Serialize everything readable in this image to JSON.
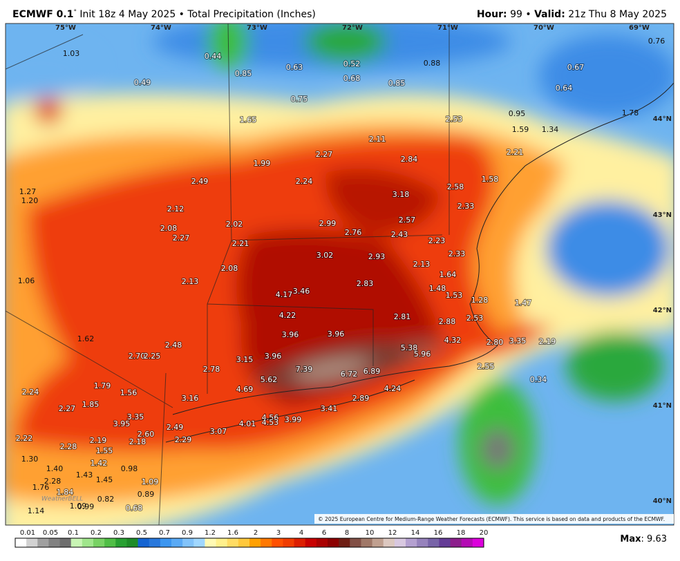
{
  "header": {
    "model": "ECMWF 0.1",
    "degree": "°",
    "init": "Init 18z 4 May 2025 • Total Precipitation (Inches)",
    "hour_label": "Hour:",
    "hour": "99 •",
    "valid_label": "Valid:",
    "valid": "21z Thu 8 May 2025"
  },
  "map": {
    "longitudes": [
      "75°W",
      "74°W",
      "73°W",
      "72°W",
      "71°W",
      "70°W",
      "69°W"
    ],
    "latitudes": [
      "44°N",
      "43°N",
      "42°N",
      "41°N",
      "40°N"
    ],
    "labels": [
      "1.03",
      "0.44",
      "0.85",
      "0.63",
      "0.52",
      "0.68",
      "0.88",
      "0.76",
      "0.67",
      "0.49",
      "0.75",
      "0.85",
      "0.64",
      "0.95",
      "1.65",
      "2.53",
      "1.59",
      "1.34",
      "1.78",
      "2.11",
      "2.27",
      "2.21",
      "2.84",
      "1.99",
      "2.49",
      "2.24",
      "1.58",
      "2.58",
      "1.27",
      "1.20",
      "3.18",
      "2.12",
      "2.33",
      "2.57",
      "2.99",
      "2.02",
      "2.08",
      "2.76",
      "2.43",
      "2.27",
      "2.21",
      "2.23",
      "3.02",
      "2.93",
      "2.33",
      "2.08",
      "2.13",
      "1.64",
      "1.06",
      "2.13",
      "2.83",
      "1.48",
      "3.46",
      "4.17",
      "1.53",
      "1.28",
      "1.47",
      "4.22",
      "2.81",
      "2.88",
      "2.53",
      "3.96",
      "3.96",
      "1.62",
      "4.32",
      "2.80",
      "3.35",
      "2.19",
      "2.48",
      "5.38",
      "5.96",
      "2.70",
      "2.25",
      "3.15",
      "3.96",
      "2.55",
      "7.39",
      "6.72",
      "6.89",
      "2.78",
      "5.62",
      "0.34",
      "1.79",
      "2.24",
      "4.69",
      "4.24",
      "1.56",
      "2.89",
      "3.16",
      "1.85",
      "2.27",
      "3.41",
      "3.35",
      "3.95",
      "4.56",
      "4.53",
      "3.99",
      "4.01",
      "2.49",
      "3.07",
      "2.60",
      "2.22",
      "2.19",
      "2.29",
      "2.18",
      "2.28",
      "1.55",
      "1.30",
      "1.42",
      "1.40",
      "0.98",
      "1.43",
      "1.45",
      "2.28",
      "1.09",
      "1.76",
      "1.84",
      "0.89",
      "0.82",
      "0.68",
      "1.09",
      "0.99",
      "1.14"
    ],
    "logo": "WeatherBELL",
    "copyright": "© 2025 European Centre for Medium-Range Weather Forecasts (ECMWF). This service is based on data and products of the ECMWF."
  },
  "colorbar": {
    "labels": [
      "0.01",
      "0.05",
      "0.1",
      "0.2",
      "0.3",
      "0.5",
      "0.7",
      "0.9",
      "1.2",
      "1.6",
      "2",
      "3",
      "4",
      "6",
      "8",
      "10",
      "12",
      "14",
      "16",
      "18",
      "20"
    ]
  },
  "footer": {
    "max_label": "Max",
    "max_value": ": 9.63"
  }
}
